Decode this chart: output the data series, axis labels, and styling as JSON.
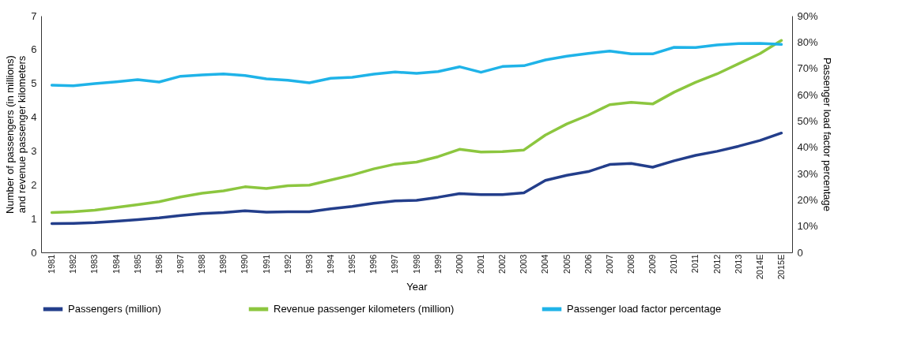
{
  "chart_data": {
    "type": "line",
    "xlabel": "Year",
    "ylabel": "Number of passengers (in millions) and revenue passenger kilometers",
    "y2label": "Passenger load factor percentage",
    "categories": [
      "1981",
      "1982",
      "1983",
      "1984",
      "1985",
      "1986",
      "1987",
      "1988",
      "1989",
      "1990",
      "1991",
      "1992",
      "1993",
      "1994",
      "1995",
      "1996",
      "1997",
      "1998",
      "1999",
      "2000",
      "2001",
      "2002",
      "2003",
      "2004",
      "2005",
      "2006",
      "2007",
      "2008",
      "2009",
      "2010",
      "2011",
      "2012",
      "2013",
      "2014E",
      "2015E"
    ],
    "series": [
      {
        "name": "Passengers (million)",
        "color": "#233e8b",
        "values": [
          0.85,
          0.86,
          0.88,
          0.92,
          0.97,
          1.02,
          1.09,
          1.15,
          1.18,
          1.23,
          1.19,
          1.2,
          1.2,
          1.29,
          1.36,
          1.45,
          1.52,
          1.54,
          1.63,
          1.74,
          1.71,
          1.71,
          1.76,
          2.13,
          2.28,
          2.39,
          2.6,
          2.63,
          2.52,
          2.71,
          2.87,
          2.99,
          3.14,
          3.31,
          3.53
        ]
      },
      {
        "name": "Revenue passenger kilometers (million)",
        "color": "#8cc63f",
        "values": [
          1.18,
          1.2,
          1.25,
          1.33,
          1.41,
          1.5,
          1.64,
          1.75,
          1.82,
          1.94,
          1.89,
          1.97,
          1.99,
          2.14,
          2.29,
          2.47,
          2.61,
          2.67,
          2.83,
          3.05,
          2.97,
          2.98,
          3.03,
          3.47,
          3.8,
          4.06,
          4.37,
          4.44,
          4.39,
          4.74,
          5.03,
          5.28,
          5.58,
          5.88,
          6.27
        ]
      },
      {
        "name": "Passenger load factor percentage",
        "color": "#1fb3e8",
        "axis": "y2",
        "values": [
          63.6,
          63.4,
          64.2,
          64.9,
          65.7,
          64.8,
          67.0,
          67.5,
          67.9,
          67.3,
          66.0,
          65.5,
          64.5,
          66.2,
          66.6,
          67.8,
          68.6,
          68.1,
          68.8,
          70.6,
          68.5,
          70.7,
          71.0,
          73.2,
          74.6,
          75.7,
          76.6,
          75.5,
          75.5,
          78.0,
          77.9,
          78.9,
          79.4,
          79.5,
          79.1
        ]
      }
    ],
    "ylim": [
      0,
      7
    ],
    "yticks": [
      0,
      1,
      2,
      3,
      4,
      5,
      6,
      7
    ],
    "y2lim": [
      0,
      90
    ],
    "y2ticks": [
      0,
      {
        "value": 10,
        "label": "10%"
      },
      {
        "value": 20,
        "label": "20%"
      },
      {
        "value": 30,
        "label": "30%"
      },
      {
        "value": 40,
        "label": "40%"
      },
      {
        "value": 50,
        "label": "50%"
      },
      {
        "value": 60,
        "label": "60%"
      },
      {
        "value": 70,
        "label": "70%"
      },
      {
        "value": 80,
        "label": "80%"
      },
      {
        "value": 90,
        "label": "90%"
      }
    ],
    "grid": false,
    "legend": "bottom",
    "marker": "none",
    "line_style": "solid"
  }
}
